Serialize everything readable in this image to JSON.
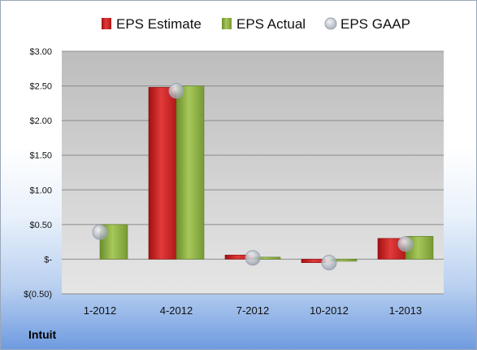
{
  "company": "Intuit",
  "chart_data": {
    "type": "bar",
    "categories": [
      "1-2012",
      "4-2012",
      "7-2012",
      "10-2012",
      "1-2013"
    ],
    "series": [
      {
        "name": "EPS Estimate",
        "values": [
          null,
          2.48,
          0.06,
          -0.05,
          0.3
        ],
        "color": "#c81e1e"
      },
      {
        "name": "EPS Actual",
        "values": [
          0.5,
          2.5,
          0.03,
          -0.02,
          0.33
        ],
        "color": "#8db040"
      },
      {
        "name": "EPS GAAP",
        "values": [
          0.39,
          2.43,
          0.02,
          -0.05,
          0.22
        ],
        "color": "#b8bec8",
        "marker": "circle"
      }
    ],
    "ylim": [
      -0.5,
      3.0
    ],
    "y_ticks": [
      -0.5,
      0,
      0.5,
      1.0,
      1.5,
      2.0,
      2.5,
      3.0
    ],
    "y_tick_labels": [
      "$(0.50)",
      "$-",
      "$0.50",
      "$1.00",
      "$1.50",
      "$2.00",
      "$2.50",
      "$3.00"
    ],
    "grid": true,
    "legend_position": "top"
  }
}
